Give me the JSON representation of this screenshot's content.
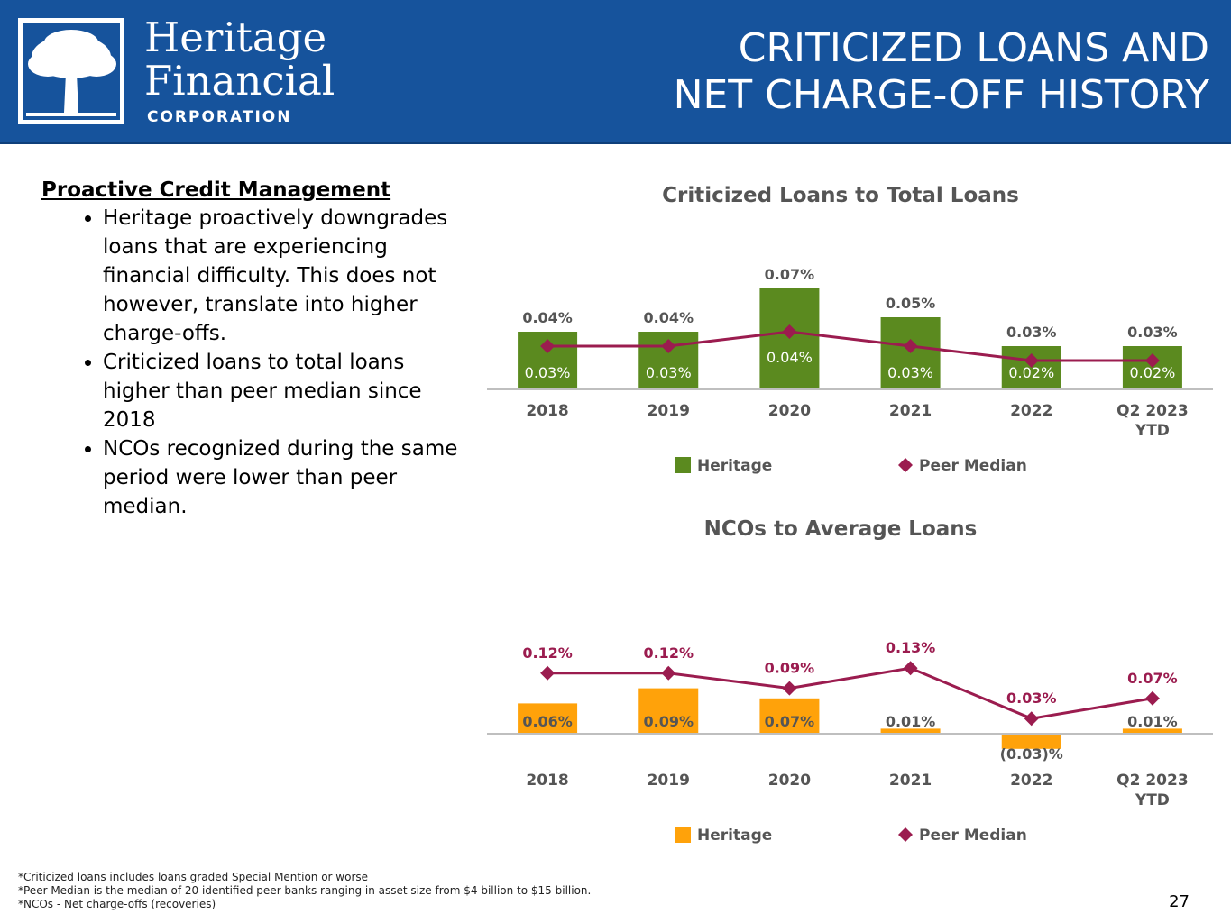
{
  "header": {
    "logo_line1": "Heritage",
    "logo_line2": "Financial",
    "logo_line3": "CORPORATION",
    "title_line1": "CRITICIZED LOANS AND",
    "title_line2": "NET CHARGE-OFF HISTORY",
    "bg_color": "#16539c"
  },
  "left": {
    "heading": "Proactive Credit Management",
    "bullets": [
      "Heritage proactively downgrades loans that are experiencing financial difficulty. This does not however, translate into higher charge-offs.",
      "Criticized loans to total loans higher than peer median since 2018",
      "NCOs recognized during the same period were lower than peer median."
    ]
  },
  "chart_data": [
    {
      "type": "bar",
      "title": "Criticized Loans to Total Loans",
      "categories": [
        "2018",
        "2019",
        "2020",
        "2021",
        "2022",
        "Q2 2023 YTD"
      ],
      "series": [
        {
          "name": "Heritage",
          "kind": "bar",
          "color": "#5b8a1f",
          "values": [
            0.04,
            0.04,
            0.07,
            0.05,
            0.03,
            0.03
          ],
          "labels": [
            "0.04%",
            "0.04%",
            "0.07%",
            "0.05%",
            "0.03%",
            "0.03%"
          ]
        },
        {
          "name": "Peer Median",
          "kind": "line",
          "color": "#9b1c4f",
          "values": [
            0.03,
            0.03,
            0.04,
            0.03,
            0.02,
            0.02
          ],
          "labels": [
            "0.03%",
            "0.03%",
            "0.04%",
            "0.03%",
            "0.02%",
            "0.02%"
          ]
        }
      ],
      "legend": [
        "Heritage",
        "Peer Median"
      ]
    },
    {
      "type": "bar",
      "title": "NCOs to Average Loans",
      "categories": [
        "2018",
        "2019",
        "2020",
        "2021",
        "2022",
        "Q2 2023 YTD"
      ],
      "series": [
        {
          "name": "Heritage",
          "kind": "bar",
          "color": "#ffa20a",
          "values": [
            0.06,
            0.09,
            0.07,
            0.01,
            -0.03,
            0.01
          ],
          "labels": [
            "0.06%",
            "0.09%",
            "0.07%",
            "0.01%",
            "(0.03)%",
            "0.01%"
          ]
        },
        {
          "name": "Peer Median",
          "kind": "line",
          "color": "#9b1c4f",
          "values": [
            0.12,
            0.12,
            0.09,
            0.13,
            0.03,
            0.07
          ],
          "labels": [
            "0.12%",
            "0.12%",
            "0.09%",
            "0.13%",
            "0.03%",
            "0.07%"
          ]
        }
      ],
      "legend": [
        "Heritage",
        "Peer Median"
      ]
    }
  ],
  "footnotes": [
    "*Criticized loans includes loans graded Special Mention or worse",
    "*Peer Median is the median of 20 identified peer banks ranging in asset size from $4 billion to $15 billion.",
    "*NCOs - Net charge-offs (recoveries)"
  ],
  "page_number": "27"
}
